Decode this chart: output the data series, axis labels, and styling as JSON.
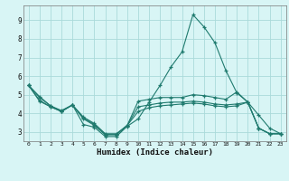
{
  "x": [
    0,
    1,
    2,
    3,
    4,
    5,
    6,
    7,
    8,
    9,
    10,
    11,
    12,
    13,
    14,
    15,
    16,
    17,
    18,
    19,
    20,
    21,
    22,
    23
  ],
  "line1": [
    5.5,
    4.9,
    4.4,
    4.1,
    4.45,
    3.4,
    3.25,
    2.75,
    2.75,
    3.3,
    3.7,
    4.6,
    5.5,
    6.5,
    7.3,
    9.3,
    8.65,
    7.8,
    6.3,
    5.1,
    4.6,
    3.9,
    3.2,
    2.9
  ],
  "line2": [
    5.5,
    4.85,
    4.4,
    4.15,
    4.45,
    3.7,
    3.35,
    2.85,
    2.85,
    3.35,
    4.65,
    4.75,
    4.85,
    4.85,
    4.85,
    5.0,
    4.95,
    4.85,
    4.75,
    5.15,
    4.6,
    3.2,
    2.9,
    2.9
  ],
  "line3": [
    5.5,
    4.7,
    4.35,
    4.1,
    4.45,
    3.75,
    3.4,
    2.85,
    2.85,
    3.35,
    4.35,
    4.45,
    4.55,
    4.6,
    4.6,
    4.65,
    4.6,
    4.5,
    4.45,
    4.5,
    4.6,
    3.2,
    2.9,
    2.9
  ],
  "line4": [
    5.5,
    4.65,
    4.35,
    4.1,
    4.45,
    3.8,
    3.45,
    2.9,
    2.9,
    3.35,
    4.1,
    4.3,
    4.4,
    4.45,
    4.5,
    4.55,
    4.5,
    4.4,
    4.35,
    4.4,
    4.6,
    3.2,
    2.9,
    2.9
  ],
  "line_color": "#1f7a6e",
  "bg_color": "#d8f5f5",
  "grid_color": "#aadada",
  "xlabel": "Humidex (Indice chaleur)",
  "ylim": [
    2.5,
    9.8
  ],
  "xlim": [
    -0.5,
    23.5
  ],
  "yticks": [
    3,
    4,
    5,
    6,
    7,
    8,
    9
  ]
}
